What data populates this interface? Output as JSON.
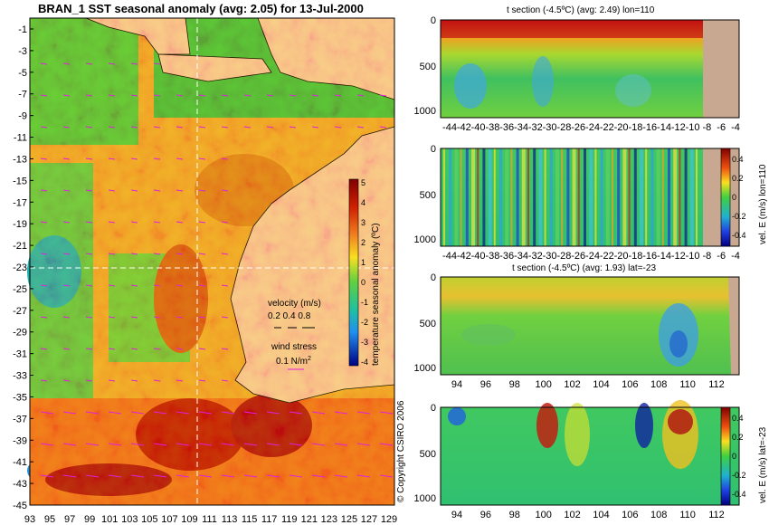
{
  "map": {
    "title": "BRAN_1  SST seasonal anomaly (avg: 2.05) for 13-Jul-2000",
    "colorbar_label": "temperature seasonal anomaly (ºC)",
    "colorbar_ticks": [
      "5",
      "4",
      "3",
      "2",
      "1",
      "0",
      "-1",
      "-2",
      "-3",
      "-4"
    ],
    "velocity_label": "velocity (m/s)",
    "velocity_scale": "0.2 0.4 0.8",
    "wind_label": "wind stress",
    "wind_scale_value": "0.1 N/m",
    "wind_scale_sup": "2",
    "copyright": "© Copyright CSIRO 2006",
    "lat_ticks": [
      "-1",
      "-3",
      "-5",
      "-7",
      "-9",
      "-11",
      "-13",
      "-15",
      "-17",
      "-19",
      "-21",
      "-23",
      "-25",
      "-27",
      "-29",
      "-31",
      "-33",
      "-35",
      "-37",
      "-39",
      "-41",
      "-43",
      "-45"
    ],
    "lon_ticks": [
      "93",
      "95",
      "97",
      "99",
      "101",
      "103",
      "105",
      "107",
      "109",
      "111",
      "113",
      "115",
      "117",
      "119",
      "121",
      "123",
      "125",
      "127",
      "129"
    ],
    "colors": {
      "land": "#f8c8a0",
      "coast": "#000000",
      "vectors": "#e020e0",
      "guide": "#ffffff"
    }
  },
  "panels": [
    {
      "title": "t section (-4.5ºC) (avg: 2.49) lon=110",
      "y_ticks": [
        "0",
        "500",
        "1000"
      ],
      "x_ticks": [
        "-44",
        "-42",
        "-40",
        "-38",
        "-36",
        "-34",
        "-32",
        "-30",
        "-28",
        "-26",
        "-24",
        "-22",
        "-20",
        "-18",
        "-16",
        "-14",
        "-12",
        "-10",
        "-8",
        "-6",
        "-4"
      ],
      "colorbar_label": "",
      "colorbar_ticks": []
    },
    {
      "title": "",
      "y_ticks": [
        "0",
        "500",
        "1000"
      ],
      "x_ticks": [
        "-44",
        "-42",
        "-40",
        "-38",
        "-36",
        "-34",
        "-32",
        "-30",
        "-28",
        "-26",
        "-24",
        "-22",
        "-20",
        "-18",
        "-16",
        "-14",
        "-12",
        "-10",
        "-8",
        "-6",
        "-4"
      ],
      "colorbar_label": "vel. E (m/s) lon=110",
      "colorbar_ticks": [
        "0.4",
        "0.2",
        "0",
        "-0.2",
        "-0.4"
      ]
    },
    {
      "title": "t section (-4.5ºC) (avg: 1.93) lat=-23",
      "y_ticks": [
        "0",
        "500",
        "1000"
      ],
      "x_ticks": [
        "94",
        "96",
        "98",
        "100",
        "102",
        "104",
        "106",
        "108",
        "110",
        "112"
      ],
      "colorbar_label": "",
      "colorbar_ticks": []
    },
    {
      "title": "",
      "y_ticks": [
        "0",
        "500",
        "1000"
      ],
      "x_ticks": [
        "94",
        "96",
        "98",
        "100",
        "102",
        "104",
        "106",
        "108",
        "110",
        "112"
      ],
      "colorbar_label": "vel. E (m/s) lat=-23",
      "colorbar_ticks": [
        "0.4",
        "0.2",
        "0",
        "-0.2",
        "-0.4"
      ]
    }
  ],
  "chart_data": [
    {
      "type": "heatmap",
      "title": "BRAN_1  SST seasonal anomaly (avg: 2.05) for 13-Jul-2000",
      "xlabel": "",
      "ylabel": "",
      "xlim": [
        93,
        130
      ],
      "ylim": [
        -45,
        0
      ],
      "colorbar": {
        "label": "temperature seasonal anomaly (ºC)",
        "range": [
          -4,
          5
        ]
      },
      "avg": 2.05,
      "date": "13-Jul-2000"
    },
    {
      "type": "heatmap",
      "title": "t section (-4.5ºC) (avg: 2.49) lon=110",
      "xlim": [
        -45,
        -3
      ],
      "ylim": [
        1050,
        0
      ],
      "avg": 2.49
    },
    {
      "type": "heatmap",
      "title": "",
      "xlim": [
        -45,
        -3
      ],
      "ylim": [
        1050,
        0
      ],
      "colorbar": {
        "label": "vel. E (m/s) lon=110",
        "range": [
          -0.4,
          0.4
        ]
      }
    },
    {
      "type": "heatmap",
      "title": "t section (-4.5ºC) (avg: 1.93) lat=-23",
      "xlim": [
        93,
        113.5
      ],
      "ylim": [
        1050,
        0
      ],
      "avg": 1.93
    },
    {
      "type": "heatmap",
      "title": "",
      "xlim": [
        93,
        113.5
      ],
      "ylim": [
        1050,
        0
      ],
      "colorbar": {
        "label": "vel. E (m/s) lat=-23",
        "range": [
          -0.4,
          0.4
        ]
      }
    }
  ]
}
